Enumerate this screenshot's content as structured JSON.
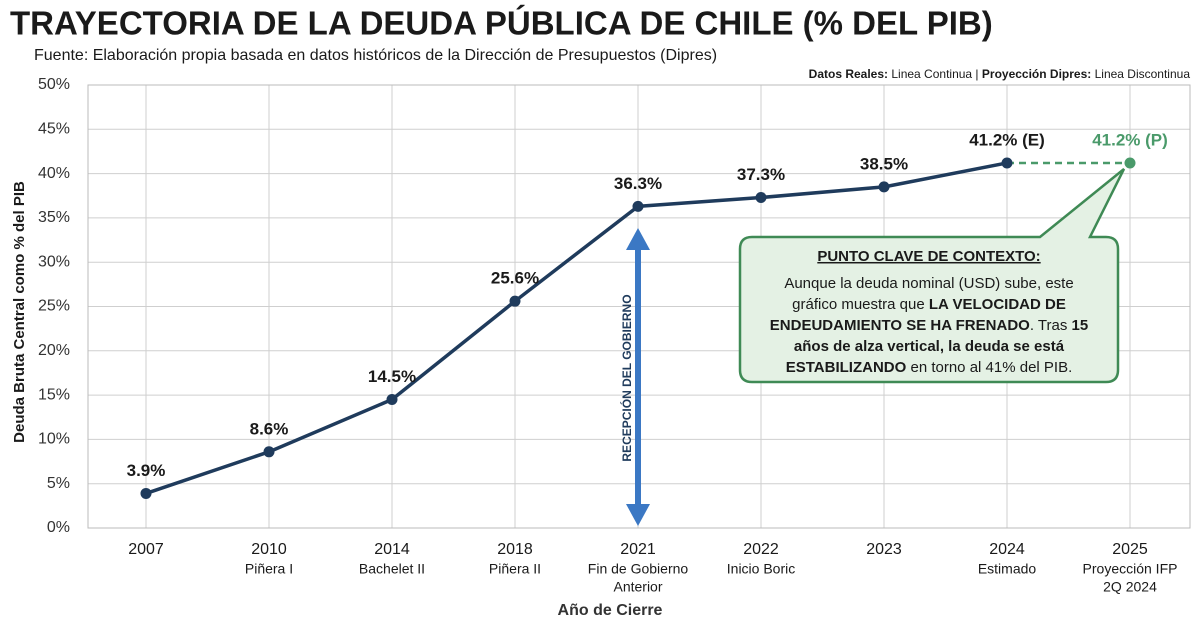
{
  "chart_data": {
    "type": "line",
    "title": "TRAYECTORIA DE LA DEUDA PÚBLICA DE CHILE (% DEL PIB)",
    "subtitle": "Fuente: Elaboración propia basada en datos históricos de la Dirección de Presupuestos (Dipres)",
    "legend_note": [
      {
        "text": "Datos Reales:",
        "bold": true
      },
      {
        "text": " Linea Continua | ",
        "bold": false
      },
      {
        "text": "Proyección Dipres:",
        "bold": true
      },
      {
        "text": " Linea Discontinua",
        "bold": false
      }
    ],
    "x_label": "Año de Cierre",
    "y_label": "Deuda Bruta Central como % del PIB",
    "categories": [
      "2007",
      "2010",
      "2014",
      "2018",
      "2021",
      "2022",
      "2023",
      "2024",
      "2025"
    ],
    "category_notes": [
      [],
      [
        "Piñera I"
      ],
      [
        "Bachelet II"
      ],
      [
        "Piñera II"
      ],
      [
        "Fin de Gobierno",
        "Anterior"
      ],
      [
        "Inicio Boric"
      ],
      [],
      [
        "Estimado"
      ],
      [
        "Proyección IFP",
        "2Q 2024"
      ]
    ],
    "series": [
      {
        "color": "#1f3b5c",
        "dashed": false,
        "values": [
          3.9,
          8.6,
          14.5,
          25.6,
          36.3,
          37.3,
          38.5,
          41.2,
          null
        ],
        "value_labels": [
          "3.9%",
          "8.6%",
          "14.5%",
          "25.6%",
          "36.3%",
          "37.3%",
          "38.5%",
          "41.2% (E)",
          null
        ]
      },
      {
        "color": "#4a9a6a",
        "dashed": true,
        "values": [
          null,
          null,
          null,
          null,
          null,
          null,
          null,
          41.2,
          41.2
        ],
        "value_labels": [
          null,
          null,
          null,
          null,
          null,
          null,
          null,
          null,
          "41.2% (P)"
        ]
      }
    ],
    "ylim": [
      0,
      50
    ],
    "yticks": [
      {
        "value": 0,
        "label": "0%"
      },
      {
        "value": 5,
        "label": "5%"
      },
      {
        "value": 10,
        "label": "10%"
      },
      {
        "value": 15,
        "label": "15%"
      },
      {
        "value": 20,
        "label": "20%"
      },
      {
        "value": 25,
        "label": "25%"
      },
      {
        "value": 30,
        "label": "30%"
      },
      {
        "value": 35,
        "label": "35%"
      },
      {
        "value": 40,
        "label": "40%"
      },
      {
        "value": 45,
        "label": "45%"
      },
      {
        "value": 50,
        "label": "50%"
      }
    ],
    "grid": true,
    "annotations": [
      {
        "text": "RECEPCIÓN DEL GOBIERNO",
        "category": 4,
        "color": "#3b78c4"
      }
    ],
    "callout": {
      "title": "PUNTO CLAVE DE CONTEXTO:",
      "lines": [
        [
          {
            "text": "Aunque la deuda nominal (USD) sube, este",
            "bold": false
          }
        ],
        [
          {
            "text": "gráfico muestra que ",
            "bold": false
          },
          {
            "text": "LA VELOCIDAD DE",
            "bold": true
          }
        ],
        [
          {
            "text": "ENDEUDAMIENTO SE HA FRENADO",
            "bold": true
          },
          {
            "text": ". Tras ",
            "bold": false
          },
          {
            "text": "15",
            "bold": true
          }
        ],
        [
          {
            "text": "años de alza vertical, la deuda se está",
            "bold": true
          }
        ],
        [
          {
            "text": "ESTABILIZANDO",
            "bold": true
          },
          {
            "text": " en torno al 41% del PIB.",
            "bold": false
          }
        ]
      ]
    }
  }
}
